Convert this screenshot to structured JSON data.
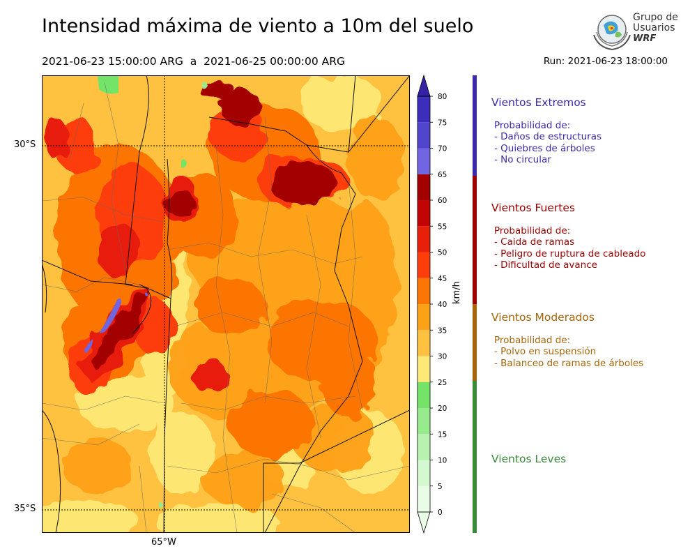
{
  "header": {
    "title": "Intensidad máxima de viento a 10m del suelo",
    "period": "2021-06-23 15:00:00 ARG  a  2021-06-25 00:00:00 ARG",
    "run": "Run: 2021-06-23 18:00:00"
  },
  "logo": {
    "line1": "Grupo de",
    "line2": "Usuarios",
    "line3": "WRF"
  },
  "map": {
    "lat_labels": [
      "30°S",
      "35°S"
    ],
    "lon_labels": [
      "65°W"
    ]
  },
  "colorbar": {
    "units": "km/h",
    "ticks": [
      "0",
      "5",
      "10",
      "15",
      "20",
      "25",
      "30",
      "35",
      "40",
      "45",
      "50",
      "55",
      "60",
      "65",
      "70",
      "75",
      "80"
    ],
    "colors": [
      "#e9fde6",
      "#d4f8cf",
      "#b7f2ae",
      "#98eb8c",
      "#74e468",
      "#fee877",
      "#fec240",
      "#fda117",
      "#fc7505",
      "#fe3e0a",
      "#e81f09",
      "#c20504",
      "#a30101",
      "#7165e1",
      "#5144cc",
      "#3c2ebb",
      "#3322a8"
    ]
  },
  "categories": [
    {
      "title": "Vientos Extremos",
      "color": "#3b2baa",
      "lines": [
        "Probabilidad de:",
        "- Daños de estructuras",
        "- Quiebres de árboles",
        "- No circular"
      ]
    },
    {
      "title": "Vientos Fuertes",
      "color": "#9b0000",
      "lines": [
        "Probabilidad de:",
        "- Caida de ramas",
        "- Peligro de ruptura de cableado",
        "- Dificultad de avance"
      ]
    },
    {
      "title": "Vientos Moderados",
      "color": "#a6650a",
      "lines": [
        "Probabilidad de:",
        "- Polvo en suspensión",
        "- Balanceo de ramas de árboles"
      ]
    },
    {
      "title": "Vientos Leves",
      "color": "#3a8a3a",
      "lines": []
    }
  ]
}
